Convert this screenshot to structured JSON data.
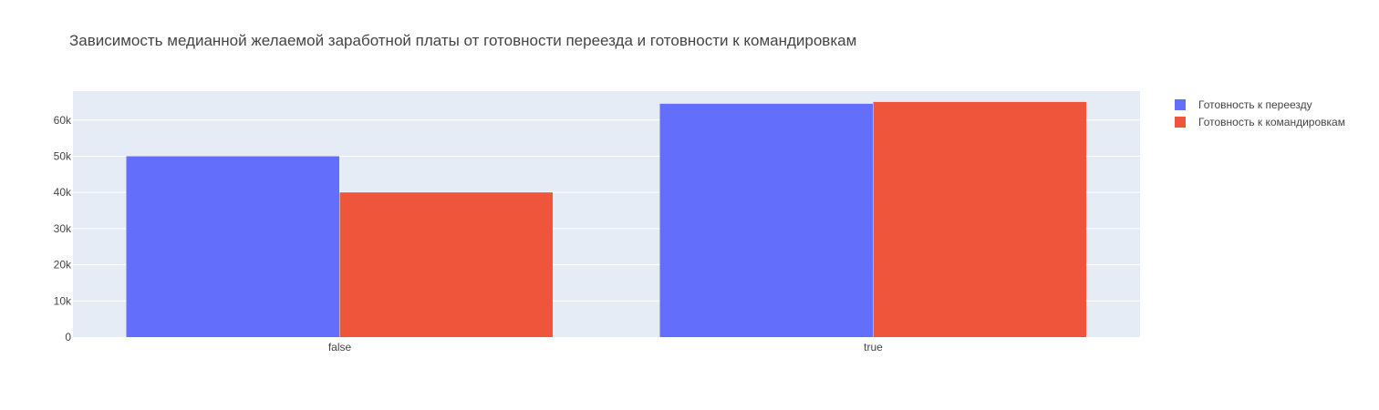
{
  "chart_data": {
    "type": "bar",
    "title": "Зависимость медианной желаемой заработной платы от готовности переезда и готовности к командировкам",
    "categories": [
      "false",
      "true"
    ],
    "series": [
      {
        "name": "Готовность к переезду",
        "values": [
          50000,
          64500
        ],
        "color": "#636efa"
      },
      {
        "name": "Готовность к командировкам",
        "values": [
          40000,
          65000
        ],
        "color": "#ef553b"
      }
    ],
    "y_ticks": [
      0,
      10000,
      20000,
      30000,
      40000,
      50000,
      60000
    ],
    "y_tick_labels": [
      "0",
      "10k",
      "20k",
      "30k",
      "40k",
      "50k",
      "60k"
    ],
    "ylim": [
      0,
      68000
    ],
    "grid": true,
    "legend_position": "top-right",
    "plot_background": "#e5ecf6"
  }
}
